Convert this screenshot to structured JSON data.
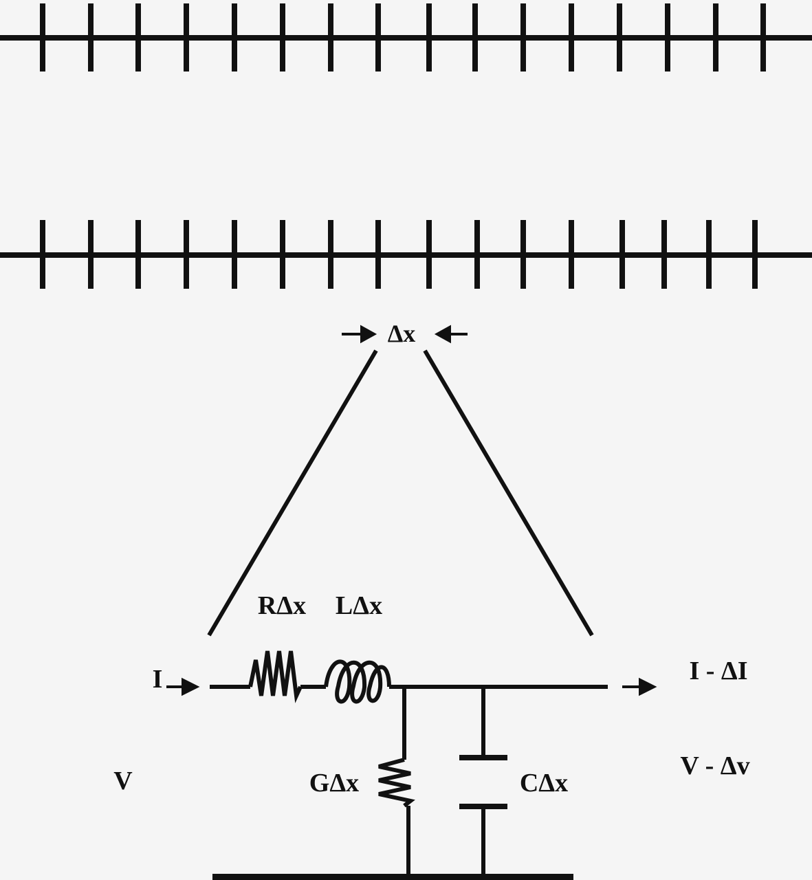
{
  "labels": {
    "delta_x": "Δx",
    "r_dx": "RΔx",
    "l_dx": "LΔx",
    "g_dx": "GΔx",
    "c_dx": "CΔx",
    "i_in": "I",
    "i_out": "I - ΔI",
    "v_in": "V",
    "v_out": "V - Δv"
  },
  "colors": {
    "ink": "#111111",
    "background": "#f5f5f5"
  }
}
